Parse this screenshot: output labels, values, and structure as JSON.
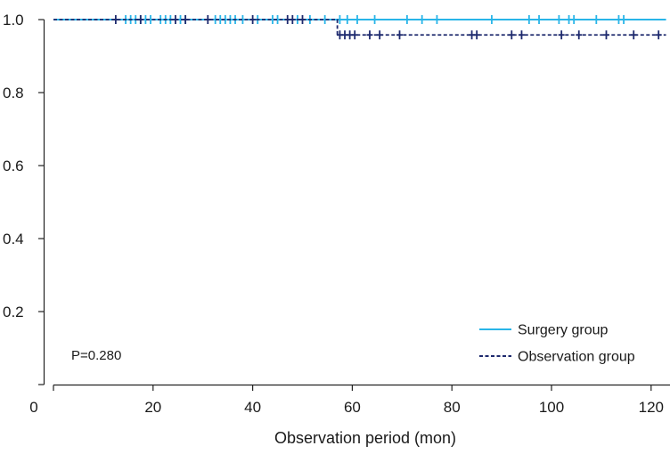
{
  "chart_data": {
    "type": "line",
    "subtype": "kaplan-meier",
    "xlabel": "Observation period (mon)",
    "ylabel": "",
    "xlim": [
      0,
      123
    ],
    "ylim": [
      0.0,
      1.0
    ],
    "x_ticks": [
      "0",
      "20",
      "40",
      "60",
      "80",
      "100",
      "120"
    ],
    "y_ticks": [
      "0.2",
      "0.4",
      "0.6",
      "0.8",
      "1.0"
    ],
    "grid": false,
    "legend_position": "bottom-right",
    "annotation": "P=0.280",
    "series": [
      {
        "name": "Surgery group",
        "color": "#29b5e8",
        "style": "solid",
        "steps": [
          [
            0,
            1.0
          ],
          [
            123,
            1.0
          ]
        ],
        "censored": [
          {
            "x": 14.5,
            "y": 1.0
          },
          {
            "x": 15.5,
            "y": 1.0
          },
          {
            "x": 16.5,
            "y": 1.0
          },
          {
            "x": 17.5,
            "y": 1.0
          },
          {
            "x": 18.5,
            "y": 1.0
          },
          {
            "x": 19.5,
            "y": 1.0
          },
          {
            "x": 21.5,
            "y": 1.0
          },
          {
            "x": 22.5,
            "y": 1.0
          },
          {
            "x": 23.5,
            "y": 1.0
          },
          {
            "x": 25.5,
            "y": 1.0
          },
          {
            "x": 26.5,
            "y": 1.0
          },
          {
            "x": 32.5,
            "y": 1.0
          },
          {
            "x": 33.5,
            "y": 1.0
          },
          {
            "x": 34.5,
            "y": 1.0
          },
          {
            "x": 35.5,
            "y": 1.0
          },
          {
            "x": 36.5,
            "y": 1.0
          },
          {
            "x": 38.0,
            "y": 1.0
          },
          {
            "x": 41.0,
            "y": 1.0
          },
          {
            "x": 44.0,
            "y": 1.0
          },
          {
            "x": 45.0,
            "y": 1.0
          },
          {
            "x": 49.0,
            "y": 1.0
          },
          {
            "x": 51.5,
            "y": 1.0
          },
          {
            "x": 54.5,
            "y": 1.0
          },
          {
            "x": 57.5,
            "y": 1.0
          },
          {
            "x": 59.0,
            "y": 1.0
          },
          {
            "x": 61.0,
            "y": 1.0
          },
          {
            "x": 64.5,
            "y": 1.0
          },
          {
            "x": 71.0,
            "y": 1.0
          },
          {
            "x": 74.0,
            "y": 1.0
          },
          {
            "x": 77.0,
            "y": 1.0
          },
          {
            "x": 88.0,
            "y": 1.0
          },
          {
            "x": 95.5,
            "y": 1.0
          },
          {
            "x": 97.5,
            "y": 1.0
          },
          {
            "x": 101.5,
            "y": 1.0
          },
          {
            "x": 103.5,
            "y": 1.0
          },
          {
            "x": 104.5,
            "y": 1.0
          },
          {
            "x": 109.0,
            "y": 1.0
          },
          {
            "x": 113.5,
            "y": 1.0
          },
          {
            "x": 114.5,
            "y": 1.0
          }
        ]
      },
      {
        "name": "Observation group",
        "color": "#1e2a6e",
        "style": "dashed",
        "steps": [
          [
            0,
            1.0
          ],
          [
            57,
            1.0
          ],
          [
            57,
            0.958
          ],
          [
            123,
            0.958
          ]
        ],
        "censored": [
          {
            "x": 12.5,
            "y": 1.0
          },
          {
            "x": 17.5,
            "y": 1.0
          },
          {
            "x": 24.5,
            "y": 1.0
          },
          {
            "x": 26.5,
            "y": 1.0
          },
          {
            "x": 31.0,
            "y": 1.0
          },
          {
            "x": 40.0,
            "y": 1.0
          },
          {
            "x": 47.0,
            "y": 1.0
          },
          {
            "x": 48.0,
            "y": 1.0
          },
          {
            "x": 50.0,
            "y": 1.0
          },
          {
            "x": 57.5,
            "y": 0.958
          },
          {
            "x": 58.5,
            "y": 0.958
          },
          {
            "x": 59.5,
            "y": 0.958
          },
          {
            "x": 60.5,
            "y": 0.958
          },
          {
            "x": 63.5,
            "y": 0.958
          },
          {
            "x": 65.5,
            "y": 0.958
          },
          {
            "x": 69.5,
            "y": 0.958
          },
          {
            "x": 84.0,
            "y": 0.958
          },
          {
            "x": 85.0,
            "y": 0.958
          },
          {
            "x": 92.0,
            "y": 0.958
          },
          {
            "x": 94.0,
            "y": 0.958
          },
          {
            "x": 102.0,
            "y": 0.958
          },
          {
            "x": 105.5,
            "y": 0.958
          },
          {
            "x": 111.0,
            "y": 0.958
          },
          {
            "x": 116.5,
            "y": 0.958
          },
          {
            "x": 121.5,
            "y": 0.958
          }
        ]
      }
    ]
  }
}
